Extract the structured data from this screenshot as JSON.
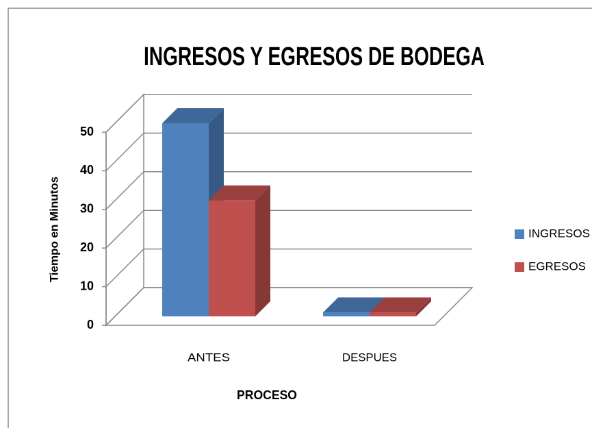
{
  "chart_data": {
    "type": "bar3d",
    "title": "INGRESOS Y EGRESOS DE BODEGA",
    "x_label": "PROCESO",
    "y_label": "Tiempo en Minutos",
    "categories": [
      "ANTES",
      "DESPUES"
    ],
    "series": [
      {
        "name": "INGRESOS",
        "color": "#4f81bd",
        "values": [
          50,
          1
        ]
      },
      {
        "name": "EGRESOS",
        "color": "#c0504d",
        "values": [
          30,
          1
        ]
      }
    ],
    "ylim": [
      0,
      50
    ],
    "yticks": [
      0,
      10,
      20,
      30,
      40,
      50
    ],
    "grid": true,
    "legend": "right"
  }
}
